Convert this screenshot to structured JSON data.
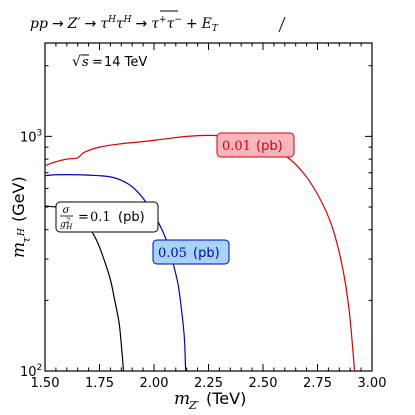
{
  "chart_data": {
    "type": "line",
    "title": "pp → Z′ → τ^H τ^H(bar) → τ⁺τ⁻ + E̸_T",
    "annotation": "√s = 14 TeV",
    "xlabel": "m_Z′ (TeV)",
    "ylabel": "m_τ^H (GeV)",
    "xlim": [
      1.5,
      3.0
    ],
    "ylim": [
      100,
      2500
    ],
    "yscale": "log",
    "x_ticks": [
      "1.50",
      "1.75",
      "2.00",
      "2.25",
      "2.50",
      "2.75",
      "3.00"
    ],
    "y_ticks": [
      {
        "value": 100,
        "base": "10",
        "exp": "2"
      },
      {
        "value": 1000,
        "base": "10",
        "exp": "3"
      }
    ],
    "grid": false,
    "series": [
      {
        "label_num": "0.1",
        "label_unit": "(pb)",
        "label_prefix_num": "σ",
        "label_prefix_den": "g²_H",
        "color": "#000000",
        "box_fill": "#ffffff",
        "points": [
          [
            1.5,
            505
          ],
          [
            1.55,
            500
          ],
          [
            1.6,
            490
          ],
          [
            1.65,
            470
          ],
          [
            1.68,
            440
          ],
          [
            1.71,
            400
          ],
          [
            1.74,
            355
          ],
          [
            1.77,
            300
          ],
          [
            1.8,
            245
          ],
          [
            1.82,
            200
          ],
          [
            1.84,
            160
          ],
          [
            1.85,
            130
          ],
          [
            1.855,
            115
          ],
          [
            1.86,
            100
          ]
        ]
      },
      {
        "label_num": "0.05",
        "label_unit": "(pb)",
        "color": "#0000cc",
        "box_fill": "#a6d4f2",
        "points": [
          [
            1.5,
            680
          ],
          [
            1.55,
            686
          ],
          [
            1.65,
            686
          ],
          [
            1.75,
            680
          ],
          [
            1.8,
            672
          ],
          [
            1.85,
            650
          ],
          [
            1.9,
            610
          ],
          [
            1.95,
            545
          ],
          [
            2.0,
            465
          ],
          [
            2.05,
            375
          ],
          [
            2.08,
            305
          ],
          [
            2.11,
            235
          ],
          [
            2.13,
            170
          ],
          [
            2.14,
            135
          ],
          [
            2.145,
            100
          ]
        ]
      },
      {
        "label_num": "0.01",
        "label_unit": "(pb)",
        "color": "#dd0000",
        "box_fill": "#f7b5bd",
        "points": [
          [
            1.5,
            750
          ],
          [
            1.55,
            780
          ],
          [
            1.6,
            800
          ],
          [
            1.65,
            810
          ],
          [
            1.68,
            855
          ],
          [
            1.75,
            900
          ],
          [
            1.85,
            930
          ],
          [
            1.95,
            950
          ],
          [
            2.05,
            975
          ],
          [
            2.15,
            1000
          ],
          [
            2.25,
            1010
          ],
          [
            2.35,
            1000
          ],
          [
            2.45,
            955
          ],
          [
            2.55,
            880
          ],
          [
            2.63,
            790
          ],
          [
            2.7,
            670
          ],
          [
            2.76,
            545
          ],
          [
            2.81,
            430
          ],
          [
            2.85,
            320
          ],
          [
            2.88,
            230
          ],
          [
            2.9,
            165
          ],
          [
            2.92,
            100
          ]
        ]
      }
    ]
  }
}
